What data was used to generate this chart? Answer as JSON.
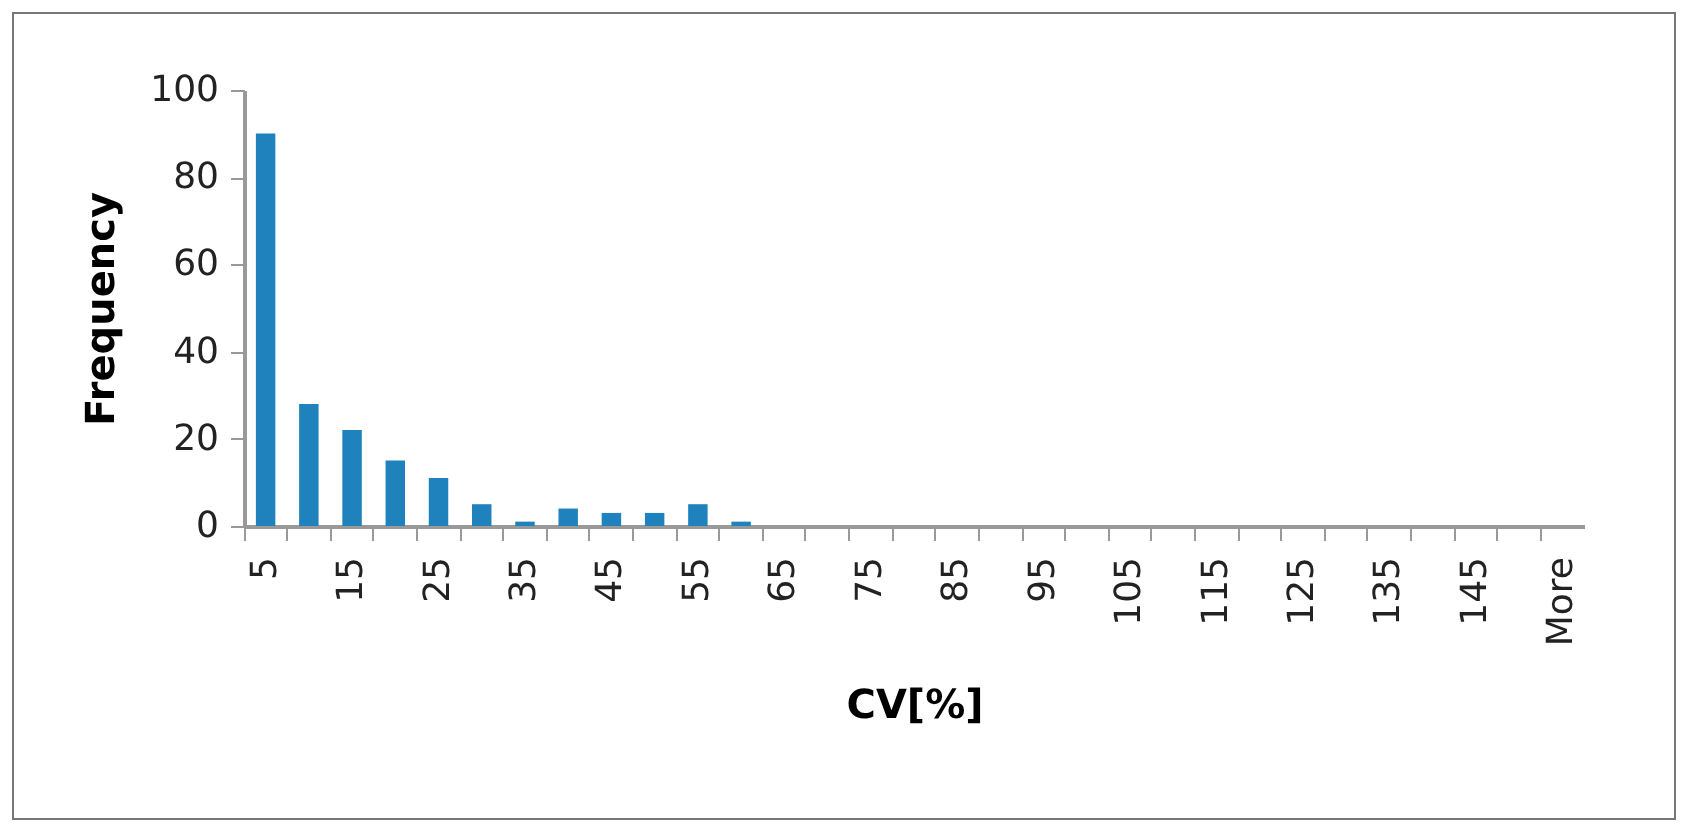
{
  "chart_data": {
    "type": "bar",
    "xlabel": "CV[%]",
    "ylabel": "Frequency",
    "categories": [
      "5",
      null,
      "15",
      null,
      "25",
      null,
      "35",
      null,
      "45",
      null,
      "55",
      null,
      "65",
      null,
      "75",
      null,
      "85",
      null,
      "95",
      null,
      "105",
      null,
      "115",
      null,
      "125",
      null,
      "135",
      null,
      "145",
      null,
      "More"
    ],
    "values": [
      90,
      28,
      22,
      15,
      11,
      5,
      1,
      4,
      3,
      3,
      5,
      1,
      0,
      0,
      0,
      0,
      0,
      0,
      0,
      0,
      0,
      0,
      0,
      0,
      0,
      0,
      0,
      0,
      0,
      0,
      0
    ],
    "color": "#1f82bd",
    "ylim": [
      0,
      100
    ],
    "yticks": [
      0,
      20,
      40,
      60,
      80,
      100
    ],
    "grid": false
  }
}
